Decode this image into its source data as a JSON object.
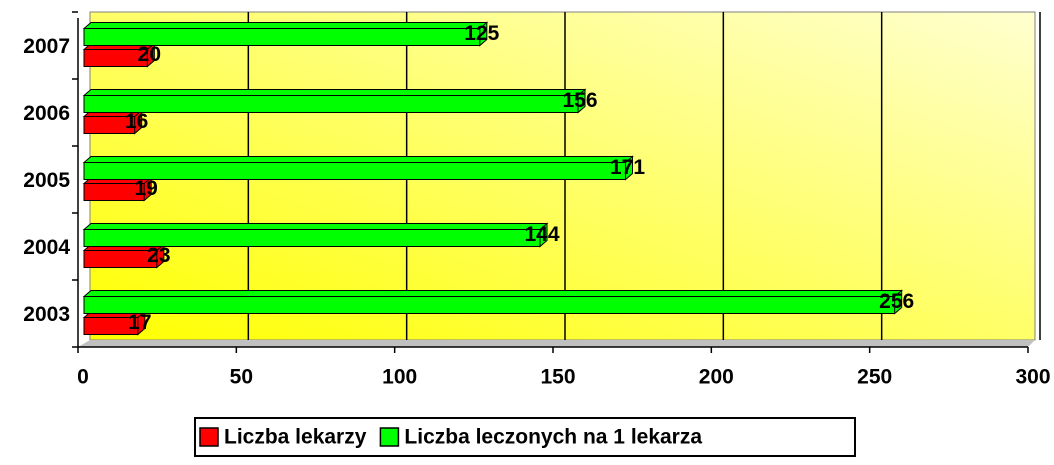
{
  "chart_data": {
    "type": "bar",
    "orientation": "horizontal",
    "categories": [
      "2003",
      "2004",
      "2005",
      "2006",
      "2007"
    ],
    "series": [
      {
        "name": "Liczba lekarzy",
        "color": "#ff0000",
        "values": [
          17,
          23,
          19,
          16,
          20
        ]
      },
      {
        "name": "Liczba leczonych na 1 lekarza",
        "color": "#00ff00",
        "values": [
          256,
          144,
          171,
          156,
          125
        ]
      }
    ],
    "xlim": [
      0,
      300
    ],
    "xticks": [
      0,
      50,
      100,
      150,
      200,
      250,
      300
    ],
    "grid": true,
    "legend": "bottom"
  }
}
